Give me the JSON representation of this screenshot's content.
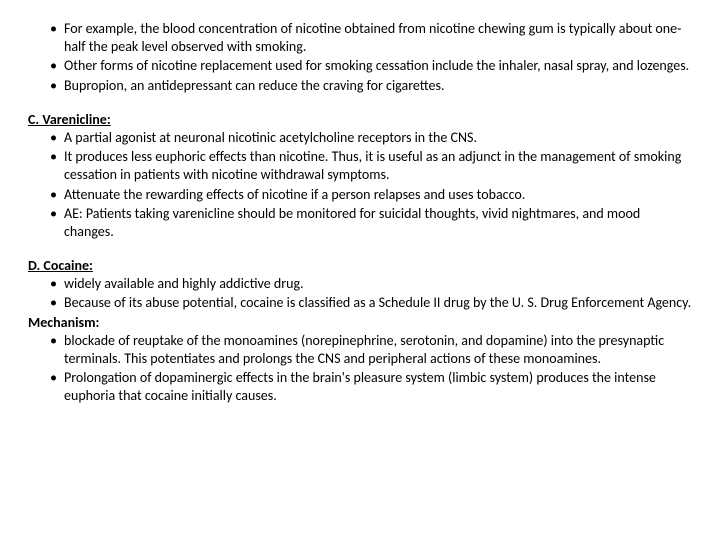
{
  "intro": {
    "items": [
      "For example, the blood concentration of nicotine obtained from nicotine chewing gum is typically about one-half the peak level observed with smoking.",
      "Other forms of nicotine replacement used for smoking cessation include the inhaler, nasal spray, and lozenges.",
      "Bupropion, an antidepressant can reduce the craving for cigarettes."
    ]
  },
  "varenicline": {
    "heading": "C. Varenicline:",
    "items": [
      "A partial agonist at neuronal nicotinic acetylcholine receptors in the CNS.",
      "It produces less euphoric effects than nicotine. Thus, it is useful as an adjunct in the management of smoking cessation in patients with nicotine withdrawal symptoms.",
      "Attenuate the rewarding effects of nicotine if a person relapses and uses tobacco.",
      "AE: Patients taking varenicline should be monitored for suicidal thoughts, vivid nightmares, and mood changes."
    ]
  },
  "cocaine": {
    "heading": "D. Cocaine:",
    "items": [
      "widely available and highly addictive drug.",
      "Because of its abuse potential, cocaine is classified as a Schedule II drug by the U. S. Drug Enforcement Agency."
    ],
    "mechanism_heading": "Mechanism:",
    "mechanism_items": [
      "blockade of reuptake of the monoamines (norepinephrine, serotonin, and dopamine) into the presynaptic terminals. This potentiates and prolongs the CNS and peripheral actions of these monoamines.",
      "Prolongation of dopaminergic effects in the brain's pleasure system (limbic system) produces the intense euphoria that cocaine initially causes."
    ]
  }
}
